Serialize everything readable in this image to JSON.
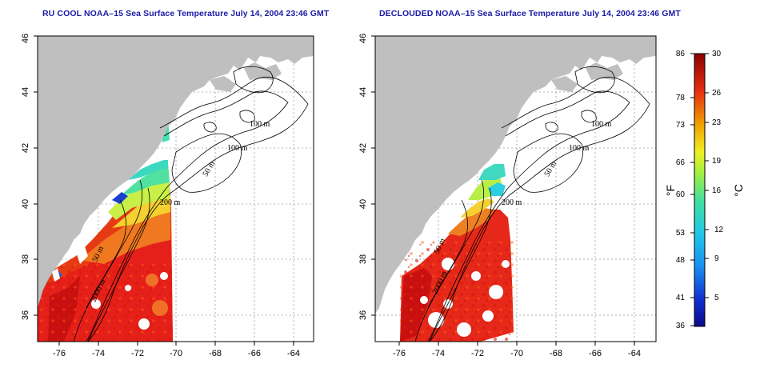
{
  "panels": [
    {
      "id": "left",
      "title": "RU COOL NOAA–15 Sea Surface Temperature July 14, 2004 23:46 GMT",
      "contour_labels": [
        "100 m",
        "100 m",
        "50 m",
        "200 m",
        "50 m",
        "2000 m"
      ]
    },
    {
      "id": "right",
      "title": "DECLOUDED NOAA–15 Sea Surface Temperature July 14, 2004 23:46 GMT",
      "contour_labels": [
        "100 m",
        "100 m",
        "50 m",
        "200 m",
        "50 m",
        "2000 m"
      ]
    }
  ],
  "axes": {
    "lon_ticks": [
      "-76",
      "-74",
      "-72",
      "-70",
      "-68",
      "-66",
      "-64"
    ],
    "lat_ticks": [
      "36",
      "38",
      "40",
      "42",
      "44",
      "46"
    ],
    "lon_range": [
      -77.2,
      -62.8
    ],
    "lat_range": [
      35.0,
      46.0
    ]
  },
  "colorbar": {
    "fahrenheit_labels": [
      "86",
      "78",
      "73",
      "66",
      "60",
      "53",
      "48",
      "41",
      "36"
    ],
    "celsius_labels": [
      "30",
      "26",
      "23",
      "19",
      "16",
      "12",
      "9",
      "5"
    ],
    "fahrenheit_unit": "°F",
    "celsius_unit": "°C",
    "celsius_range": [
      2,
      30
    ]
  },
  "colors": {
    "land": "#bfbfbf",
    "ocean_nodata": "#ffffff",
    "title": "#1a1aa6",
    "grid": "#b0b0b0"
  }
}
